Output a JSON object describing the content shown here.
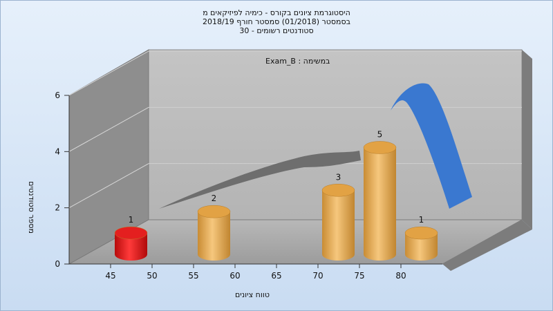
{
  "chart_data": {
    "type": "bar",
    "title_lines": [
      "היסטוגרמת ציונים בקורס - כימיה לפיזיקאים מ",
      "בסמסטר  (01/2018)  סמסטר חורף 2018/19",
      "סטודנטים רשומים - 30"
    ],
    "subtitle": "במשימה : Exam_B",
    "xlabel": "טווח ציונים",
    "ylabel": "מספר סטודנטים",
    "x_ticks": [
      "45",
      "50",
      "55",
      "60",
      "65",
      "70",
      "75",
      "80"
    ],
    "y_ticks": [
      "0",
      "2",
      "4",
      "6"
    ],
    "ylim": [
      0,
      6
    ],
    "grid": true,
    "bars": [
      {
        "bin": "45-50",
        "value": 1,
        "label": "1",
        "color": "#e01818"
      },
      {
        "bin": "55-60",
        "value": 2,
        "label": "2",
        "color": "#e8a548"
      },
      {
        "bin": "70-75",
        "value": 3,
        "label": "3",
        "color": "#e8a548"
      },
      {
        "bin": "75-80",
        "value": 5,
        "label": "5",
        "color": "#e8a548"
      },
      {
        "bin": "80-85",
        "value": 1,
        "label": "1",
        "color": "#e8a548"
      }
    ],
    "curve": {
      "type": "3d-ribbon",
      "colors": [
        "#6e6e6e",
        "#3a78d0"
      ]
    }
  }
}
